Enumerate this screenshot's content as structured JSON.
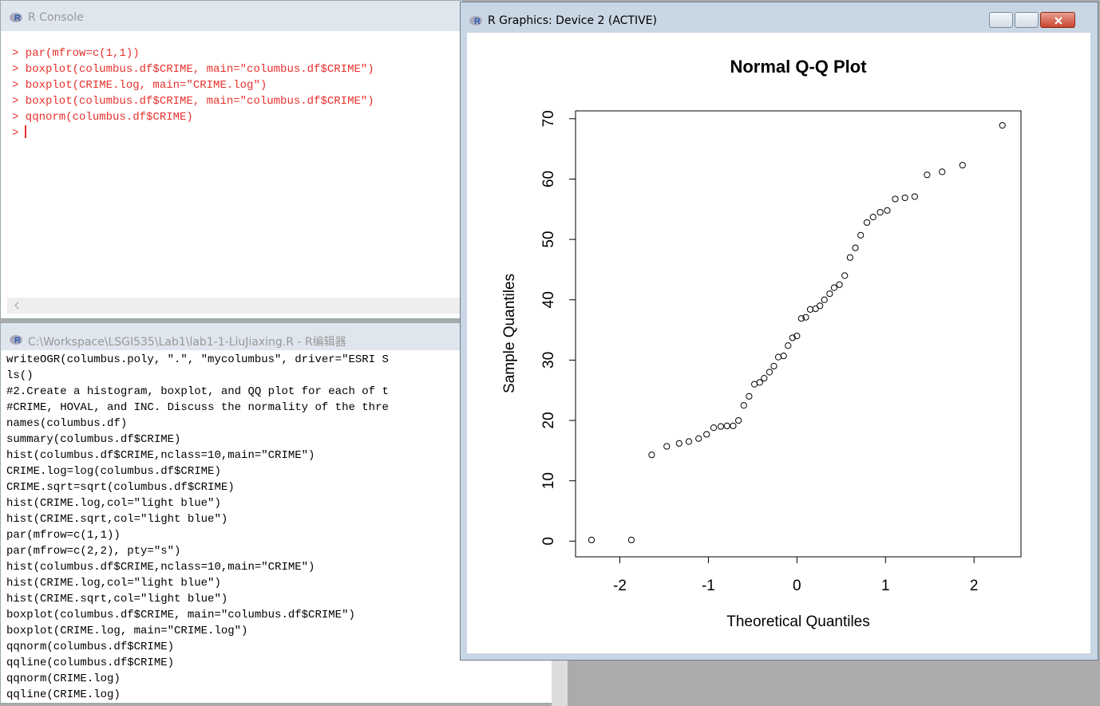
{
  "console": {
    "title": "R Console",
    "lines": [
      "> par(mfrow=c(1,1))",
      "> boxplot(columbus.df$CRIME, main=\"columbus.df$CRIME\")",
      "> boxplot(CRIME.log, main=\"CRIME.log\")",
      "> boxplot(columbus.df$CRIME, main=\"columbus.df$CRIME\")",
      "> qqnorm(columbus.df$CRIME)",
      ">"
    ]
  },
  "editor": {
    "title": "C:\\Workspace\\LSGI535\\Lab1\\lab1-1-LiuJiaxing.R - R编辑器",
    "lines": [
      "writeOGR(columbus.poly, \".\", \"mycolumbus\", driver=\"ESRI S",
      "ls()",
      "#2.Create a histogram, boxplot, and QQ plot for each of t",
      "#CRIME, HOVAL, and INC. Discuss the normality of the thre",
      "names(columbus.df)",
      "summary(columbus.df$CRIME)",
      "hist(columbus.df$CRIME,nclass=10,main=\"CRIME\")",
      "CRIME.log=log(columbus.df$CRIME)",
      "CRIME.sqrt=sqrt(columbus.df$CRIME)",
      "hist(CRIME.log,col=\"light blue\")",
      "hist(CRIME.sqrt,col=\"light blue\")",
      "par(mfrow=c(1,1))",
      "par(mfrow=c(2,2), pty=\"s\")",
      "hist(columbus.df$CRIME,nclass=10,main=\"CRIME\")",
      "hist(CRIME.log,col=\"light blue\")",
      "hist(CRIME.sqrt,col=\"light blue\")",
      "boxplot(columbus.df$CRIME, main=\"columbus.df$CRIME\")",
      "boxplot(CRIME.log, main=\"CRIME.log\")",
      "qqnorm(columbus.df$CRIME)",
      "qqline(columbus.df$CRIME)",
      "qqnorm(CRIME.log)",
      "qqline(CRIME.log)"
    ]
  },
  "graphics": {
    "title": "R Graphics: Device 2 (ACTIVE)"
  },
  "chart_data": {
    "type": "scatter",
    "title": "Normal Q-Q Plot",
    "x_label": "Theoretical Quantiles",
    "y_label": "Sample Quantiles",
    "x": [
      -2.32,
      -1.87,
      -1.64,
      -1.47,
      -1.33,
      -1.22,
      -1.11,
      -1.02,
      -0.94,
      -0.86,
      -0.79,
      -0.72,
      -0.66,
      -0.6,
      -0.54,
      -0.48,
      -0.42,
      -0.37,
      -0.31,
      -0.26,
      -0.21,
      -0.15,
      -0.1,
      -0.05,
      0,
      0.05,
      0.1,
      0.15,
      0.21,
      0.26,
      0.31,
      0.37,
      0.42,
      0.48,
      0.54,
      0.6,
      0.66,
      0.72,
      0.79,
      0.86,
      0.94,
      1.02,
      1.11,
      1.22,
      1.33,
      1.47,
      1.64,
      1.87,
      2.32
    ],
    "y": [
      0.2,
      0.2,
      14.3,
      15.7,
      16.2,
      16.5,
      17.0,
      17.7,
      18.8,
      19.0,
      19.1,
      19.1,
      20.0,
      22.5,
      24.0,
      26.0,
      26.3,
      27.0,
      28.0,
      29.0,
      30.5,
      30.7,
      32.4,
      33.7,
      34.0,
      36.9,
      37.1,
      38.4,
      38.5,
      39.0,
      40.0,
      41.0,
      42.0,
      42.5,
      44.0,
      47.0,
      48.6,
      50.7,
      52.8,
      53.7,
      54.5,
      54.8,
      56.7,
      56.9,
      57.1,
      60.7,
      61.2,
      62.3,
      68.9
    ],
    "xlim": [
      -2.5,
      2.53
    ],
    "ylim": [
      -2.6,
      71.3
    ],
    "xticks": [
      -2,
      -1,
      0,
      1,
      2
    ],
    "yticks": [
      0,
      10,
      20,
      30,
      40,
      50,
      60,
      70
    ]
  }
}
